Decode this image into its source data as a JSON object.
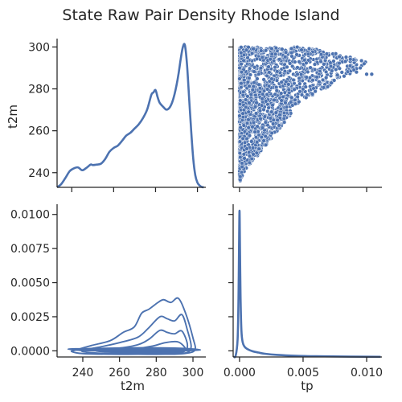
{
  "chart_data": {
    "type": "pairplot",
    "title": "State Raw Pair Density Rhode Island",
    "variables": [
      "t2m",
      "tp"
    ],
    "color": "#4c72b0",
    "grid": false,
    "panels": [
      {
        "id": "t2m-t2m",
        "type": "line",
        "kind": "kde",
        "ylabel": "t2m",
        "xlim": [
          233,
          304
        ],
        "ylim": [
          233,
          304
        ],
        "xticks": [
          240,
          260,
          280,
          300
        ],
        "yticks": [
          240,
          260,
          280,
          300
        ],
        "x": [
          233.0,
          235.0,
          237.0,
          239.0,
          241.0,
          243.0,
          245.0,
          247.0,
          249.0,
          250.0,
          252.0,
          254.0,
          256.0,
          258.0,
          260.0,
          262.0,
          264.0,
          266.0,
          268.0,
          270.0,
          272.0,
          274.0,
          276.0,
          278.0,
          279.0,
          280.0,
          281.0,
          282.0,
          284.0,
          285.0,
          286.0,
          287.0,
          288.0,
          289.0,
          290.0,
          291.0,
          292.0,
          293.0,
          294.0,
          295.0,
          296.0,
          297.0,
          298.0,
          299.0,
          300.0,
          301.0,
          302.0,
          303.0
        ],
        "density": [
          0.0,
          0.007,
          0.02,
          0.034,
          0.04,
          0.042,
          0.036,
          0.041,
          0.048,
          0.047,
          0.048,
          0.05,
          0.06,
          0.075,
          0.083,
          0.088,
          0.098,
          0.109,
          0.115,
          0.124,
          0.133,
          0.146,
          0.164,
          0.195,
          0.2,
          0.205,
          0.19,
          0.178,
          0.168,
          0.164,
          0.165,
          0.17,
          0.18,
          0.195,
          0.215,
          0.24,
          0.27,
          0.295,
          0.3,
          0.26,
          0.19,
          0.12,
          0.06,
          0.025,
          0.01,
          0.004,
          0.001,
          0.0
        ]
      },
      {
        "id": "tp-t2m",
        "type": "scatter",
        "xlim": [
          -0.0005,
          0.0112
        ],
        "ylim": [
          233,
          304
        ],
        "xticks": [
          0.0,
          0.005,
          0.01
        ],
        "yticks": [
          240,
          260,
          280,
          300
        ],
        "envelope": {
          "t2m_range": [
            236,
            300
          ],
          "t2m": [
            236,
            240,
            245,
            250,
            255,
            260,
            265,
            270,
            275,
            280,
            285,
            290,
            293,
            296,
            299
          ],
          "tp_max": [
            0.0001,
            0.0005,
            0.001,
            0.0017,
            0.0024,
            0.003,
            0.0037,
            0.0043,
            0.0051,
            0.0067,
            0.008,
            0.0095,
            0.01,
            0.0082,
            0.006
          ]
        }
      },
      {
        "id": "t2m-tp",
        "type": "line",
        "kind": "kde2d_contours",
        "xlabel": "t2m",
        "xlim": [
          226,
          307
        ],
        "ylim": [
          -0.00045,
          0.01075
        ],
        "xticks": [
          240,
          260,
          280,
          300
        ],
        "yticks": [
          0.0,
          0.0025,
          0.005,
          0.0075,
          0.01
        ],
        "ytick_labels": [
          "0.0000",
          "0.0025",
          "0.0050",
          "0.0075",
          "0.0100"
        ],
        "contours": [
          {
            "x": [
              236.0,
              245.0,
              255.0,
              262.0,
              268.0,
              272.0,
              276.0,
              281.0,
              284.0,
              288.0,
              292.0,
              296.0,
              300.0,
              301.0,
              295.0,
              285.0,
              270.0,
              255.0,
              240.0,
              234.0
            ],
            "tp": [
              5e-05,
              0.0004,
              0.00075,
              0.00135,
              0.00175,
              0.00275,
              0.00305,
              0.00355,
              0.00375,
              0.00355,
              0.00385,
              0.00275,
              0.00095,
              5e-05,
              -0.0002,
              -0.00025,
              -0.00025,
              -0.00025,
              -0.0002,
              -5e-05
            ]
          },
          {
            "x": [
              240.0,
              250.0,
              260.0,
              270.0,
              276.0,
              282.0,
              286.0,
              290.0,
              294.0,
              297.0,
              299.0,
              296.0,
              285.0,
              270.0,
              255.0,
              242.0
            ],
            "tp": [
              5e-05,
              0.0003,
              0.0006,
              0.001,
              0.0017,
              0.0025,
              0.00235,
              0.0022,
              0.00265,
              0.0015,
              0.0003,
              -0.00015,
              -0.0002,
              -0.0002,
              -0.0002,
              -0.0001
            ]
          },
          {
            "x": [
              248.0,
              260.0,
              270.0,
              276.0,
              282.0,
              286.0,
              290.0,
              294.0,
              297.0,
              294.0,
              282.0,
              265.0,
              250.0
            ],
            "tp": [
              5e-05,
              0.0002,
              0.00045,
              0.00085,
              0.0015,
              0.00135,
              0.00125,
              0.00145,
              0.0004,
              -0.0001,
              -0.00015,
              -0.00015,
              -5e-05
            ]
          },
          {
            "x": [
              255.0,
              268.0,
              278.0,
              285.0,
              292.0,
              296.0,
              292.0,
              280.0,
              262.0
            ],
            "tp": [
              5e-05,
              0.00015,
              0.00035,
              0.0006,
              0.00065,
              0.0001,
              -8e-05,
              -0.0001,
              -6e-05
            ]
          },
          {
            "x": [
              232.0,
              250.0,
              270.0,
              290.0,
              304.0,
              290.0,
              270.0,
              250.0
            ],
            "tp": [
              0.00012,
              0.00018,
              0.00022,
              0.0002,
              8e-05,
              0.0,
              -2e-05,
              0.0
            ]
          },
          {
            "x": [
              234.0,
              250.0,
              270.0,
              290.0,
              302.0,
              290.0,
              270.0,
              250.0
            ],
            "tp": [
              9e-05,
              0.00013,
              0.00016,
              0.00015,
              6e-05,
              1e-05,
              -1e-05,
              1e-05
            ]
          },
          {
            "x": [
              236.0,
              250.0,
              270.0,
              290.0,
              300.0,
              290.0,
              270.0,
              250.0
            ],
            "tp": [
              6e-05,
              9e-05,
              0.00011,
              0.0001,
              5e-05,
              2e-05,
              1e-05,
              2e-05
            ]
          },
          {
            "x": [
              238.0,
              252.0,
              270.0,
              288.0,
              298.0,
              288.0,
              270.0,
              252.0
            ],
            "tp": [
              4e-05,
              5e-05,
              6e-05,
              6e-05,
              4e-05,
              2e-05,
              2e-05,
              2e-05
            ]
          }
        ]
      },
      {
        "id": "tp-tp",
        "type": "line",
        "kind": "kde",
        "xlabel": "tp",
        "xlim": [
          -0.0005,
          0.0112
        ],
        "xticks": [
          0.0,
          0.005,
          0.01
        ],
        "xtick_labels": [
          "0.000",
          "0.005",
          "0.010"
        ],
        "x": [
          -0.00048,
          -0.0003,
          -0.00015,
          -8e-05,
          -4e-05,
          0.0,
          4e-05,
          8e-05,
          0.00015,
          0.00025,
          0.0004,
          0.0006,
          0.001,
          0.0015,
          0.002,
          0.003,
          0.0045,
          0.006,
          0.008,
          0.01,
          0.0111
        ],
        "density": [
          0.0,
          0.01,
          0.12,
          0.4,
          0.72,
          1.0,
          0.72,
          0.42,
          0.18,
          0.1,
          0.07,
          0.055,
          0.04,
          0.03,
          0.022,
          0.014,
          0.008,
          0.005,
          0.003,
          0.002,
          0.001
        ]
      }
    ]
  }
}
